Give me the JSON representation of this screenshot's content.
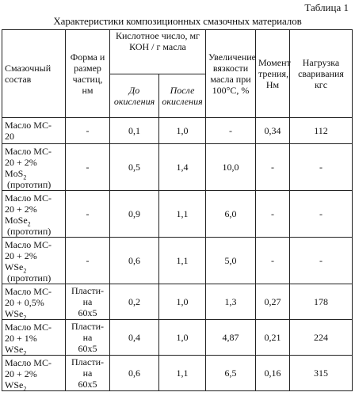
{
  "caption": {
    "table_label": "Таблица 1",
    "title": "Характеристики композиционных смазочных материалов"
  },
  "header": {
    "col_composition": "Смазочный состав",
    "col_form": "Форма и размер частиц, нм",
    "col_acid_group": "Кислотное число, мг КОН / г масла",
    "col_acid_before": "До окисления",
    "col_acid_after": "После окисления",
    "col_viscosity": "Увеличение вязкости масла при 100°С, %",
    "col_moment": "Момент трения, Нм",
    "col_load": "Нагрузка сваривания кгс"
  },
  "rows": [
    {
      "comp": [
        "Масло МС-",
        "20"
      ],
      "form": "-",
      "before": "0,1",
      "after": "1,0",
      "visc": "-",
      "moment": "0,34",
      "load": "112"
    },
    {
      "comp": [
        "Масло МС-",
        "20 + 2%",
        "MoS",
        "2",
        "(прототип)"
      ],
      "form": "-",
      "before": "0,5",
      "after": "1,4",
      "visc": "10,0",
      "moment": "-",
      "load": "-"
    },
    {
      "comp": [
        "Масло МС-",
        "20 + 2%",
        "MoSe",
        "2",
        "(прототип)"
      ],
      "form": "-",
      "before": "0,9",
      "after": "1,1",
      "visc": "6,0",
      "moment": "-",
      "load": "-"
    },
    {
      "comp": [
        "Масло МС-",
        "20 + 2%",
        "WSe",
        "2",
        "(прототип)"
      ],
      "form": "-",
      "before": "0,6",
      "after": "1,1",
      "visc": "5,0",
      "moment": "-",
      "load": "-"
    },
    {
      "comp": [
        "Масло МС-",
        "20 + 0,5%",
        "WSe",
        "2"
      ],
      "form": "Пласти-на 60х5",
      "before": "0,2",
      "after": "1,0",
      "visc": "1,3",
      "moment": "0,27",
      "load": "178"
    },
    {
      "comp": [
        "Масло МС-",
        "20 + 1%",
        "WSe",
        "2"
      ],
      "form": "Пласти-на 60х5",
      "before": "0,4",
      "after": "1,0",
      "visc": "4,87",
      "moment": "0,21",
      "load": "224"
    },
    {
      "comp": [
        "Масло МС-",
        "20 + 2%",
        "WSe",
        "2"
      ],
      "form": "Пласти-на 60х5",
      "before": "0,6",
      "after": "1,1",
      "visc": "6,5",
      "moment": "0,16",
      "load": "315"
    }
  ]
}
